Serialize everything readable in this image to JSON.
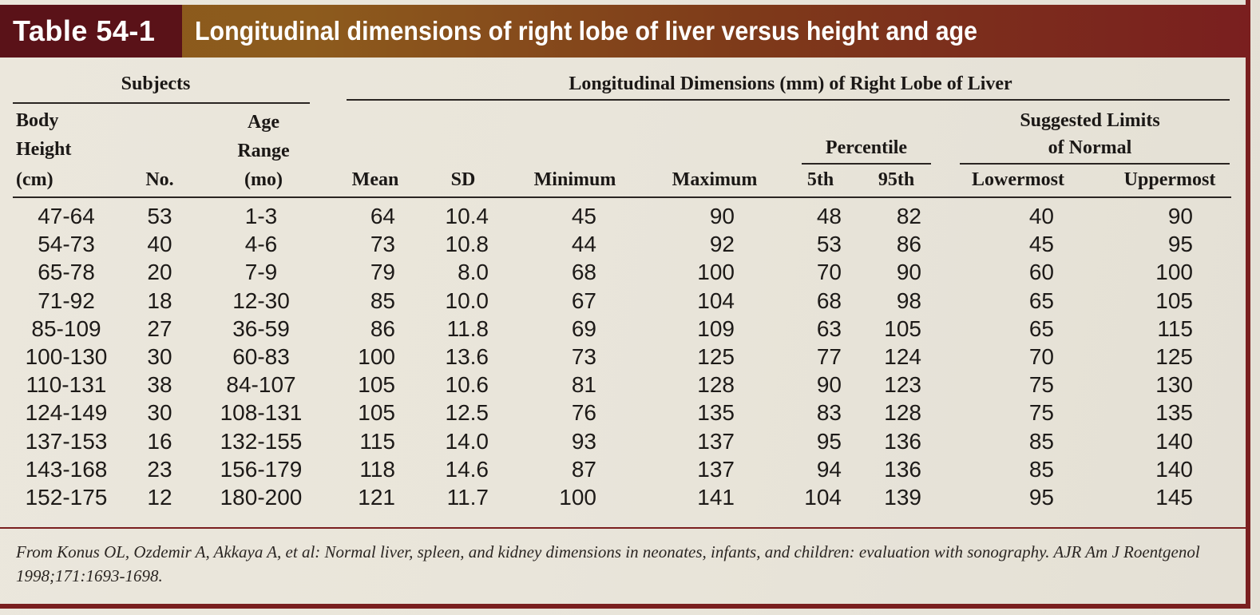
{
  "header": {
    "tag": "Table 54-1",
    "title": "Longitudinal dimensions of right lobe of liver versus height and age"
  },
  "groups": {
    "subjects": "Subjects",
    "dimensions": "Longitudinal Dimensions (mm) of Right Lobe of Liver",
    "percentile": "Percentile",
    "suggested_line1": "Suggested Limits",
    "suggested_line2": "of Normal"
  },
  "columns": {
    "height": [
      "Body",
      "Height",
      "(cm)"
    ],
    "no": "No.",
    "age": [
      "Age",
      "Range",
      "(mo)"
    ],
    "mean": "Mean",
    "sd": "SD",
    "minimum": "Minimum",
    "maximum": "Maximum",
    "p5": "5th",
    "p95": "95th",
    "lowermost": "Lowermost",
    "uppermost": "Uppermost"
  },
  "rows": [
    [
      "47-64",
      "53",
      "1-3",
      "64",
      "10.4",
      "45",
      "90",
      "48",
      "82",
      "40",
      "90"
    ],
    [
      "54-73",
      "40",
      "4-6",
      "73",
      "10.8",
      "44",
      "92",
      "53",
      "86",
      "45",
      "95"
    ],
    [
      "65-78",
      "20",
      "7-9",
      "79",
      "8.0",
      "68",
      "100",
      "70",
      "90",
      "60",
      "100"
    ],
    [
      "71-92",
      "18",
      "12-30",
      "85",
      "10.0",
      "67",
      "104",
      "68",
      "98",
      "65",
      "105"
    ],
    [
      "85-109",
      "27",
      "36-59",
      "86",
      "11.8",
      "69",
      "109",
      "63",
      "105",
      "65",
      "115"
    ],
    [
      "100-130",
      "30",
      "60-83",
      "100",
      "13.6",
      "73",
      "125",
      "77",
      "124",
      "70",
      "125"
    ],
    [
      "110-131",
      "38",
      "84-107",
      "105",
      "10.6",
      "81",
      "128",
      "90",
      "123",
      "75",
      "130"
    ],
    [
      "124-149",
      "30",
      "108-131",
      "105",
      "12.5",
      "76",
      "135",
      "83",
      "128",
      "75",
      "135"
    ],
    [
      "137-153",
      "16",
      "132-155",
      "115",
      "14.0",
      "93",
      "137",
      "95",
      "136",
      "85",
      "140"
    ],
    [
      "143-168",
      "23",
      "156-179",
      "118",
      "14.6",
      "87",
      "137",
      "94",
      "136",
      "85",
      "140"
    ],
    [
      "152-175",
      "12",
      "180-200",
      "121",
      "11.7",
      "100",
      "141",
      "104",
      "139",
      "95",
      "145"
    ]
  ],
  "footnote": "From Konus OL, Ozdemir A, Akkaya A, et al: Normal liver, spleen, and kidney dimensions in neonates, infants, and children: evaluation with sonography. AJR Am J Roentgenol 1998;171:1693-1698.",
  "colors": {
    "tag_bg": "#5a1218",
    "header_gold": "#8a5a1c",
    "header_maroon": "#7a1f1f",
    "paper": "#ebe7dc"
  }
}
